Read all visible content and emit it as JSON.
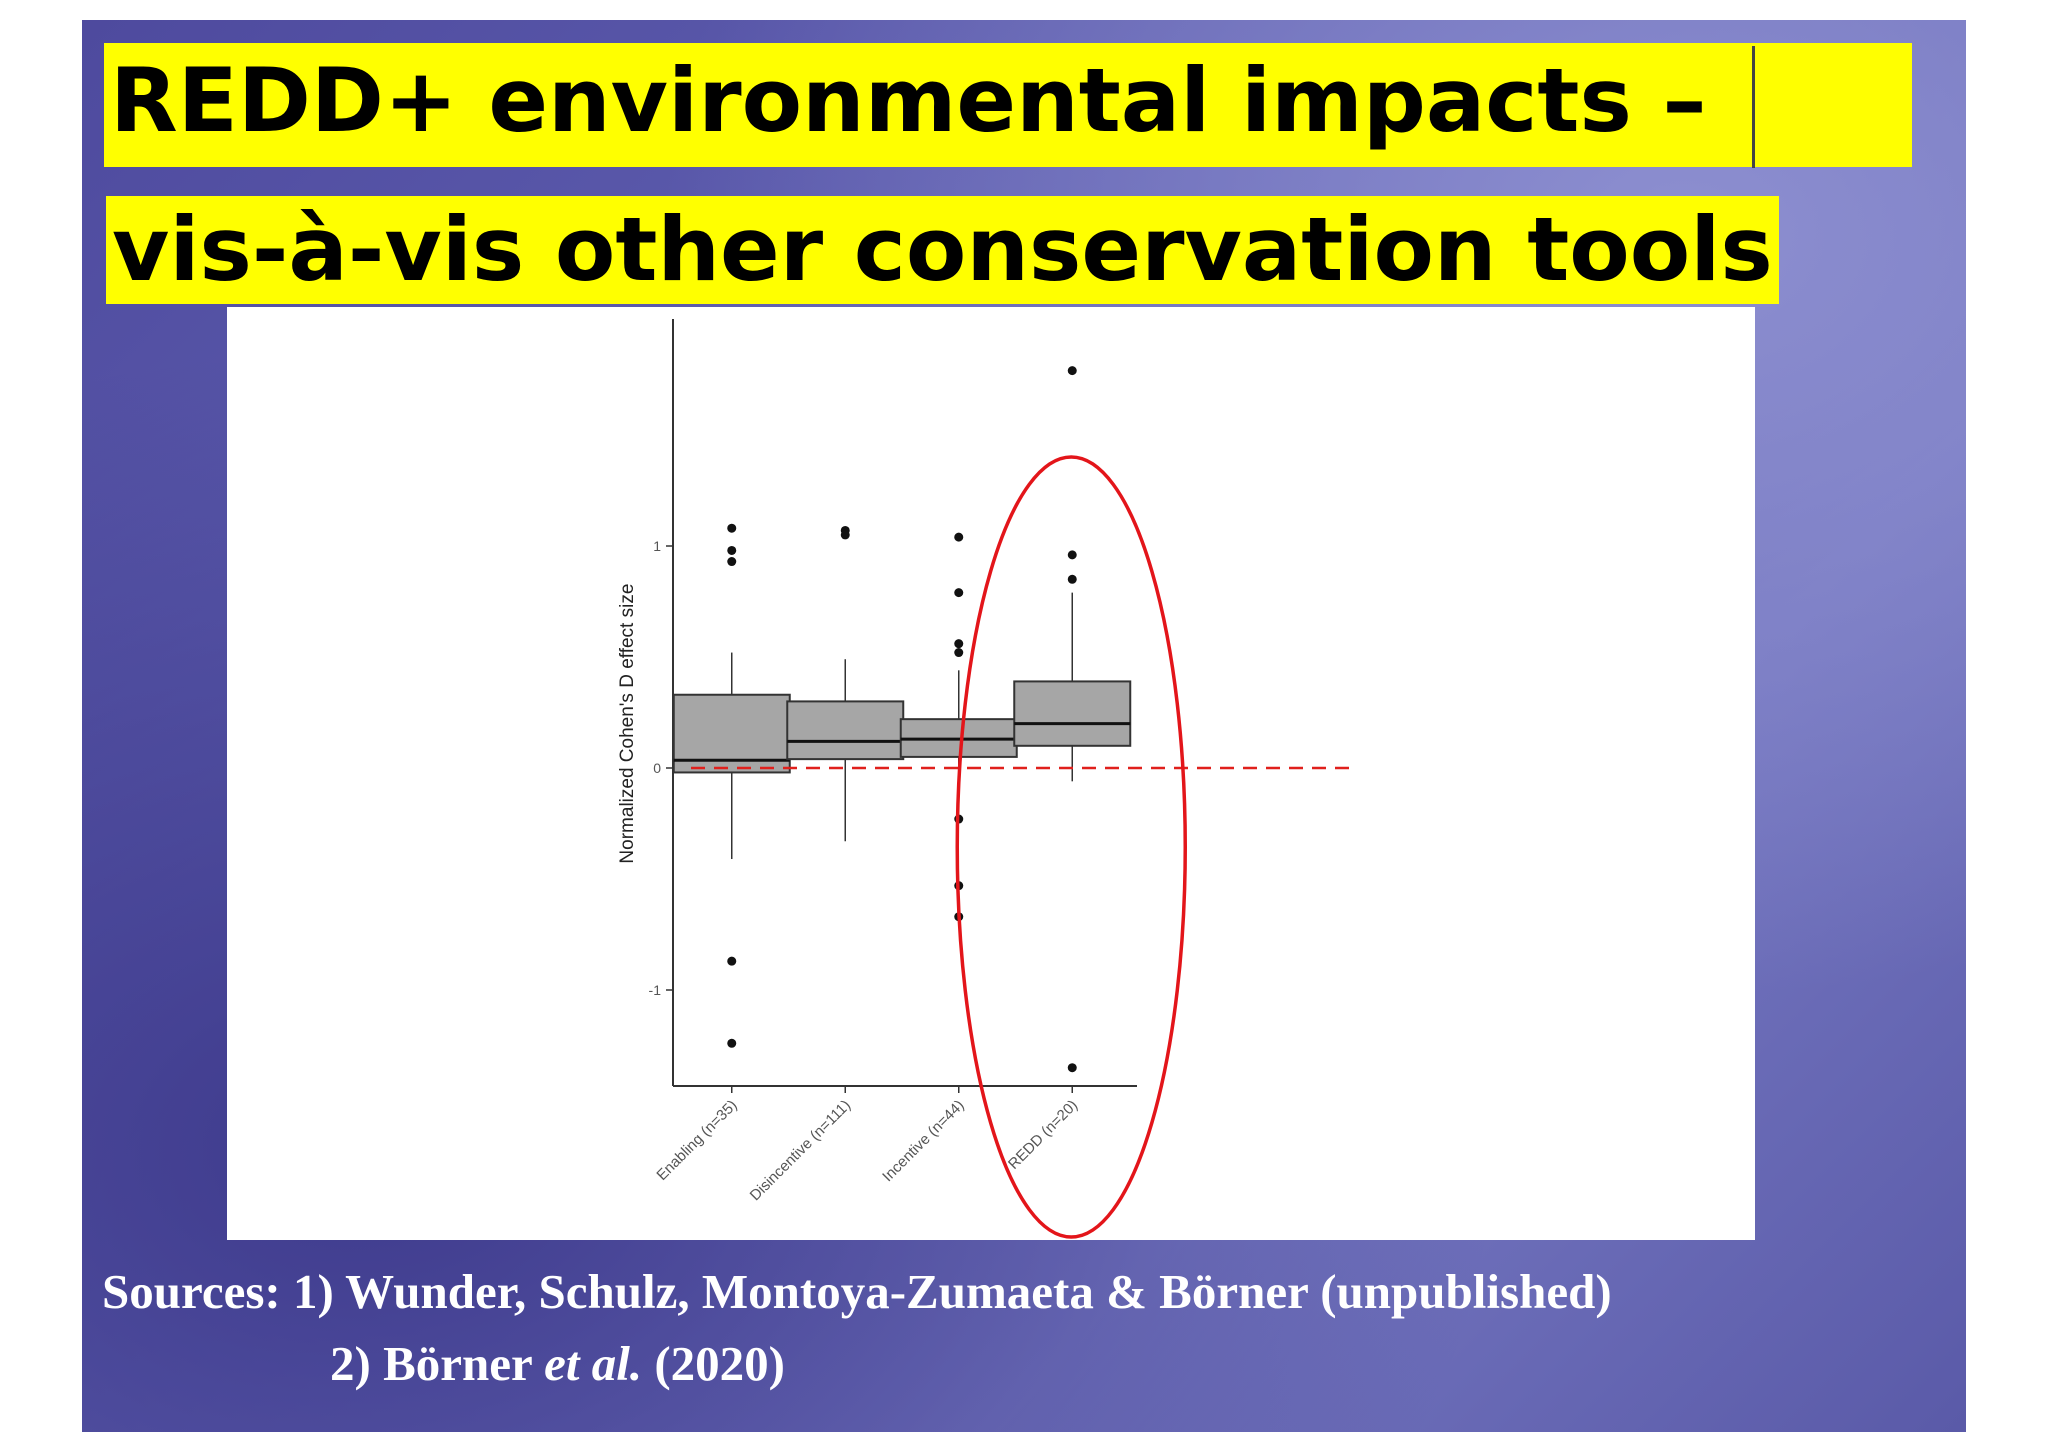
{
  "title": {
    "line1": "REDD+ environmental impacts –",
    "line2": "vis-à-vis other conservation tools"
  },
  "sources": {
    "label": "Sources:",
    "item1": "1) Wunder, Schulz, Montoya-Zumaeta & Börner (unpublished)",
    "item2_prefix": "2) Börner ",
    "item2_italic": "et al.",
    "item2_suffix": " (2020)"
  },
  "colors": {
    "title_highlight": "#ffff00",
    "box_fill": "#a6a6a6",
    "reference_line": "#e0201c",
    "highlight_ellipse": "#e3151a"
  },
  "chart_data": {
    "type": "box",
    "title": "",
    "xlabel": "",
    "ylabel": "Normalized Cohen's D effect size",
    "ylim": [
      -1.5,
      1.95
    ],
    "yticks": [
      -1,
      0,
      1
    ],
    "ytick_labels": [
      "-1",
      "0",
      "1"
    ],
    "reference_line": {
      "y": 0,
      "style": "dashed",
      "color": "#e0201c"
    },
    "categories": [
      "Enabling (n=35)",
      "Disincentive (n=111)",
      "Incentive (n=44)",
      "REDD (n=20)"
    ],
    "boxes": [
      {
        "category": "Enabling (n=35)",
        "whisker_low": -0.41,
        "q1": -0.02,
        "median": 0.035,
        "q3": 0.33,
        "whisker_high": 0.52,
        "outliers": [
          1.08,
          0.98,
          0.93,
          -0.87,
          -1.24
        ]
      },
      {
        "category": "Disincentive (n=111)",
        "whisker_low": -0.33,
        "q1": 0.04,
        "median": 0.12,
        "q3": 0.3,
        "whisker_high": 0.49,
        "outliers": [
          1.07,
          1.05
        ]
      },
      {
        "category": "Incentive (n=44)",
        "whisker_low": -0.12,
        "q1": 0.05,
        "median": 0.13,
        "q3": 0.22,
        "whisker_high": 0.44,
        "outliers": [
          1.04,
          0.79,
          0.56,
          0.52,
          -0.23,
          -0.53,
          -0.67
        ]
      },
      {
        "category": "REDD (n=20)",
        "whisker_low": -0.06,
        "q1": 0.1,
        "median": 0.2,
        "q3": 0.39,
        "whisker_high": 0.79,
        "outliers": [
          1.79,
          0.96,
          0.85,
          -1.35
        ]
      }
    ],
    "highlighted_category": "REDD (n=20)",
    "grid": false,
    "legend": "none"
  }
}
